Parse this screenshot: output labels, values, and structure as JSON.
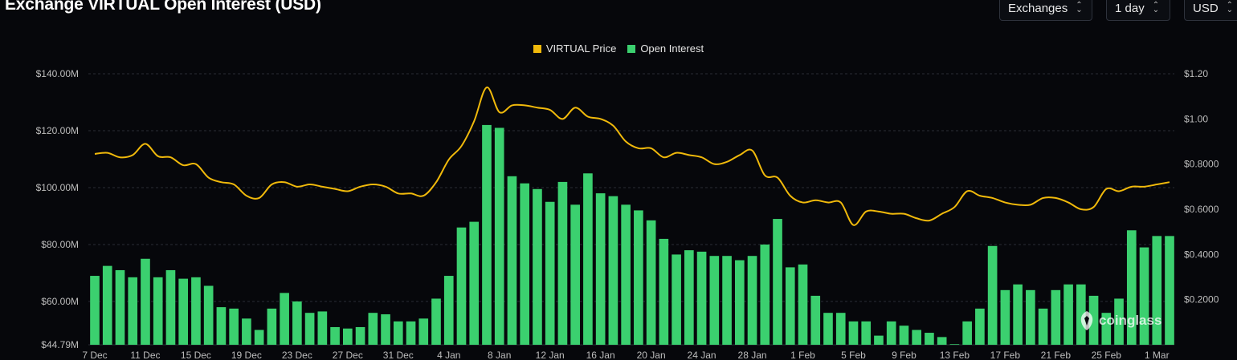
{
  "header": {
    "title": "Exchange VIRTUAL Open Interest (USD)",
    "controls": [
      {
        "label": "Exchanges"
      },
      {
        "label": "1 day"
      },
      {
        "label": "USD"
      }
    ]
  },
  "watermark": {
    "text": "coinglass"
  },
  "colors": {
    "price": "#f0b90b",
    "oi": "#3bd06f",
    "grid": "#2a2d36",
    "axis_text": "#bdbdbd"
  },
  "chart_data": {
    "type": "bar",
    "title": "Exchange VIRTUAL Open Interest (USD)",
    "legend": [
      "VIRTUAL Price",
      "Open Interest"
    ],
    "legend_position": "top-center",
    "grid": true,
    "x_tick_labels": [
      "7 Dec",
      "11 Dec",
      "15 Dec",
      "19 Dec",
      "23 Dec",
      "27 Dec",
      "31 Dec",
      "4 Jan",
      "8 Jan",
      "12 Jan",
      "16 Jan",
      "20 Jan",
      "24 Jan",
      "28 Jan",
      "1 Feb",
      "5 Feb",
      "9 Feb",
      "13 Feb",
      "17 Feb",
      "21 Feb",
      "25 Feb",
      "1 Mar"
    ],
    "y_left": {
      "ticks": [
        "$140.00M",
        "$120.00M",
        "$100.00M",
        "$80.00M",
        "$60.00M",
        "$44.79M"
      ],
      "min": 44.79,
      "max": 140
    },
    "y_right": {
      "ticks": [
        "$1.20",
        "$1.00",
        "$0.8000",
        "$0.6000",
        "$0.4000",
        "$0.2000"
      ],
      "min": 0,
      "max": 1.2
    },
    "series": [
      {
        "name": "Open Interest",
        "unit": "USD M",
        "values": [
          69,
          72.5,
          71,
          68.5,
          75,
          68.5,
          71,
          68,
          68.5,
          65.5,
          58,
          57.5,
          54,
          50,
          57.5,
          63,
          60,
          56,
          56.5,
          51,
          50.5,
          51,
          56,
          55.5,
          53,
          53,
          54,
          61,
          69,
          86,
          88,
          122,
          121,
          104,
          101.5,
          99.5,
          95,
          102,
          94,
          105,
          98,
          97,
          94,
          92,
          88.5,
          82,
          76.5,
          78,
          77.5,
          76,
          76,
          74.5,
          76,
          80,
          89,
          72,
          73,
          62,
          56,
          56,
          53,
          53,
          48,
          53,
          51.5,
          50,
          49,
          47.5,
          45,
          53,
          57.5,
          79.5,
          64,
          66,
          64,
          57.5,
          64,
          66,
          66,
          62,
          56,
          61,
          85,
          79,
          83,
          83
        ]
      },
      {
        "name": "VIRTUAL Price",
        "unit": "USD",
        "values": [
          0.845,
          0.85,
          0.83,
          0.84,
          0.89,
          0.835,
          0.83,
          0.795,
          0.8,
          0.74,
          0.72,
          0.71,
          0.66,
          0.65,
          0.71,
          0.72,
          0.7,
          0.71,
          0.7,
          0.69,
          0.68,
          0.7,
          0.71,
          0.7,
          0.67,
          0.67,
          0.66,
          0.72,
          0.82,
          0.88,
          0.99,
          1.14,
          1.03,
          1.06,
          1.06,
          1.05,
          1.04,
          1.0,
          1.05,
          1.01,
          1.0,
          0.97,
          0.9,
          0.87,
          0.87,
          0.83,
          0.85,
          0.84,
          0.83,
          0.8,
          0.81,
          0.84,
          0.86,
          0.75,
          0.74,
          0.66,
          0.63,
          0.64,
          0.63,
          0.63,
          0.53,
          0.59,
          0.59,
          0.58,
          0.58,
          0.56,
          0.55,
          0.58,
          0.61,
          0.68,
          0.66,
          0.65,
          0.63,
          0.62,
          0.62,
          0.65,
          0.65,
          0.63,
          0.6,
          0.61,
          0.69,
          0.68,
          0.7,
          0.7,
          0.71,
          0.72
        ]
      }
    ]
  }
}
